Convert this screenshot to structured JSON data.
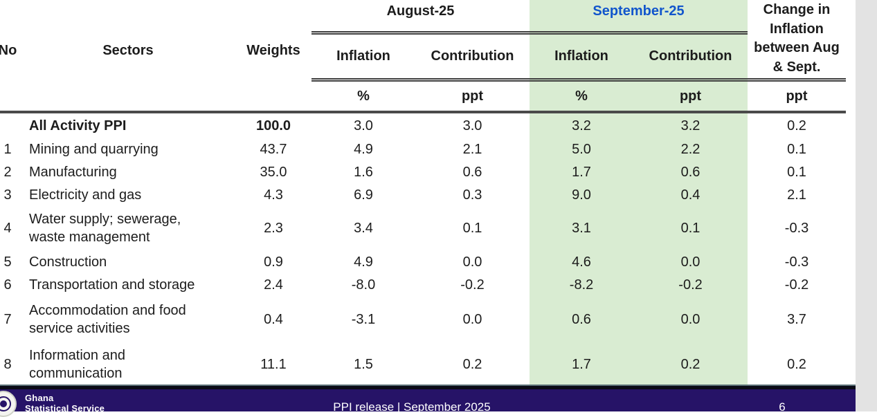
{
  "colors": {
    "highlight_green": "#d9ecd2",
    "september_header_blue": "#1155cc",
    "footer_navy": "#261367"
  },
  "table": {
    "headers": {
      "no": "No",
      "sectors": "Sectors",
      "weights": "Weights",
      "august": "August-25",
      "september": "September-25",
      "change": "Change in Inflation between Aug & Sept.",
      "inflation": "Inflation",
      "contribution": "Contribution",
      "unit_percent": "%",
      "unit_ppt": "ppt"
    },
    "rows": [
      {
        "no": "",
        "sector": "All Activity PPI",
        "weight": "100.0",
        "aug_inflation": "3.0",
        "aug_contribution": "3.0",
        "sep_inflation": "3.2",
        "sep_contribution": "3.2",
        "change": "0.2"
      },
      {
        "no": "1",
        "sector": "Mining and quarrying",
        "weight": "43.7",
        "aug_inflation": "4.9",
        "aug_contribution": "2.1",
        "sep_inflation": "5.0",
        "sep_contribution": "2.2",
        "change": "0.1"
      },
      {
        "no": "2",
        "sector": "Manufacturing",
        "weight": "35.0",
        "aug_inflation": "1.6",
        "aug_contribution": "0.6",
        "sep_inflation": "1.7",
        "sep_contribution": "0.6",
        "change": "0.1"
      },
      {
        "no": "3",
        "sector": "Electricity and gas",
        "weight": "4.3",
        "aug_inflation": "6.9",
        "aug_contribution": "0.3",
        "sep_inflation": "9.0",
        "sep_contribution": "0.4",
        "change": "2.1"
      },
      {
        "no": "4",
        "sector": "Water supply; sewerage, waste management",
        "weight": "2.3",
        "aug_inflation": "3.4",
        "aug_contribution": "0.1",
        "sep_inflation": "3.1",
        "sep_contribution": "0.1",
        "change": "-0.3"
      },
      {
        "no": "5",
        "sector": "Construction",
        "weight": "0.9",
        "aug_inflation": "4.9",
        "aug_contribution": "0.0",
        "sep_inflation": "4.6",
        "sep_contribution": "0.0",
        "change": "-0.3"
      },
      {
        "no": "6",
        "sector": "Transportation and storage",
        "weight": "2.4",
        "aug_inflation": "-8.0",
        "aug_contribution": "-0.2",
        "sep_inflation": "-8.2",
        "sep_contribution": "-0.2",
        "change": "-0.2"
      },
      {
        "no": "7",
        "sector": "Accommodation and food service activities",
        "weight": "0.4",
        "aug_inflation": "-3.1",
        "aug_contribution": "0.0",
        "sep_inflation": "0.6",
        "sep_contribution": "0.0",
        "change": "3.7"
      },
      {
        "no": "8",
        "sector": "Information and communication",
        "weight": "11.1",
        "aug_inflation": "1.5",
        "aug_contribution": "0.2",
        "sep_inflation": "1.7",
        "sep_contribution": "0.2",
        "change": "0.2"
      }
    ]
  },
  "footer": {
    "org_name_line1": "Ghana",
    "org_name_line2": "Statistical Service",
    "release_label": "PPI release | September 2025",
    "page_number": "6"
  },
  "icons": {
    "gss_logo": "circular-seal"
  }
}
